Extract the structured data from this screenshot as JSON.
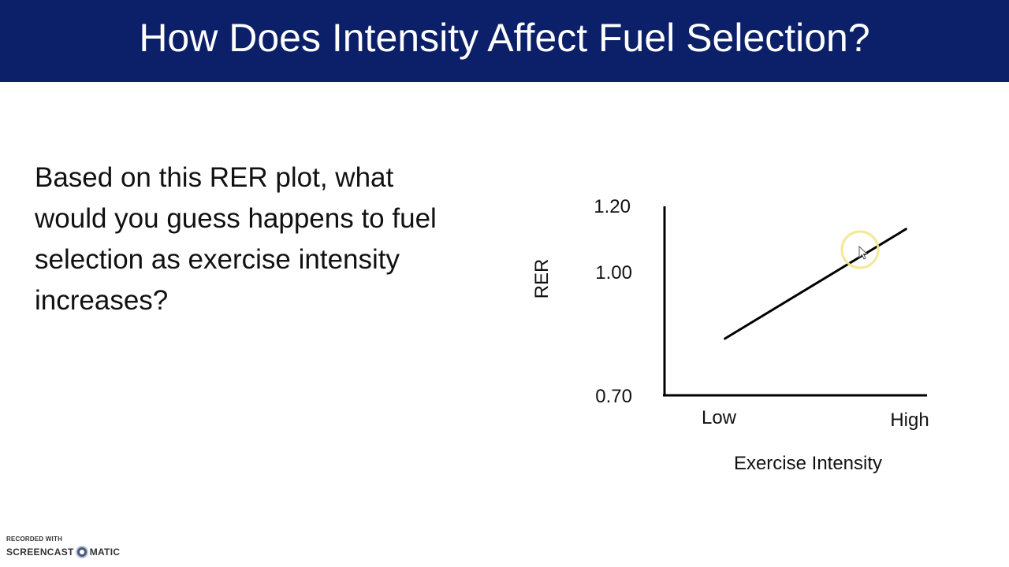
{
  "slide": {
    "title": "How Does Intensity Affect Fuel Selection?",
    "question": "Based on this RER plot, what would you guess happens to fuel selection as exercise intensity increases?"
  },
  "chart_data": {
    "type": "line",
    "ylabel": "RER",
    "xlabel": "Exercise Intensity",
    "y_ticks": [
      "1.20",
      "1.00",
      "0.70"
    ],
    "x_ticks": [
      "Low",
      "High"
    ],
    "series": [
      {
        "x": [
          0.23,
          0.92
        ],
        "y": [
          0.85,
          1.14
        ]
      }
    ],
    "xlim": [
      0,
      1
    ],
    "ylim": [
      0.7,
      1.2
    ],
    "grid": false
  },
  "cursor": {
    "highlight_color": "#f3e58a"
  },
  "watermark": {
    "recorded_with": "RECORDED WITH",
    "brand_left": "SCREENCAST",
    "brand_right": "MATIC"
  }
}
